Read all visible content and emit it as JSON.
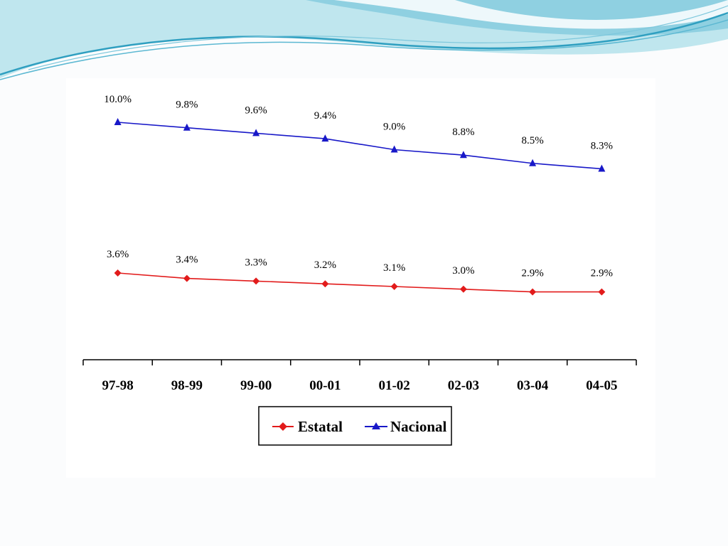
{
  "colors": {
    "estatal": "#e21b1b",
    "nacional": "#1818c8",
    "axis": "#000000",
    "wave_light": "#a9dde8",
    "wave_dark": "#3aa7c6"
  },
  "chart_data": {
    "type": "line",
    "title": "",
    "xlabel": "",
    "ylabel": "",
    "categories": [
      "97-98",
      "98-99",
      "99-00",
      "00-01",
      "01-02",
      "02-03",
      "03-04",
      "04-05"
    ],
    "series": [
      {
        "name": "Estatal",
        "marker": "diamond",
        "values": [
          3.6,
          3.4,
          3.3,
          3.2,
          3.1,
          3.0,
          2.9,
          2.9
        ],
        "labels": [
          "3.6%",
          "3.4%",
          "3.3%",
          "3.2%",
          "3.1%",
          "3.0%",
          "2.9%",
          "2.9%"
        ]
      },
      {
        "name": "Nacional",
        "marker": "triangle",
        "values": [
          10.0,
          9.8,
          9.6,
          9.4,
          9.0,
          8.8,
          8.5,
          8.3
        ],
        "labels": [
          "10.0%",
          "9.8%",
          "9.6%",
          "9.4%",
          "9.0%",
          "8.8%",
          "8.5%",
          "8.3%"
        ]
      }
    ],
    "y_axis_visible": false,
    "grid": false,
    "legend": {
      "position": "bottom",
      "entries": [
        "Estatal",
        "Nacional"
      ]
    }
  }
}
